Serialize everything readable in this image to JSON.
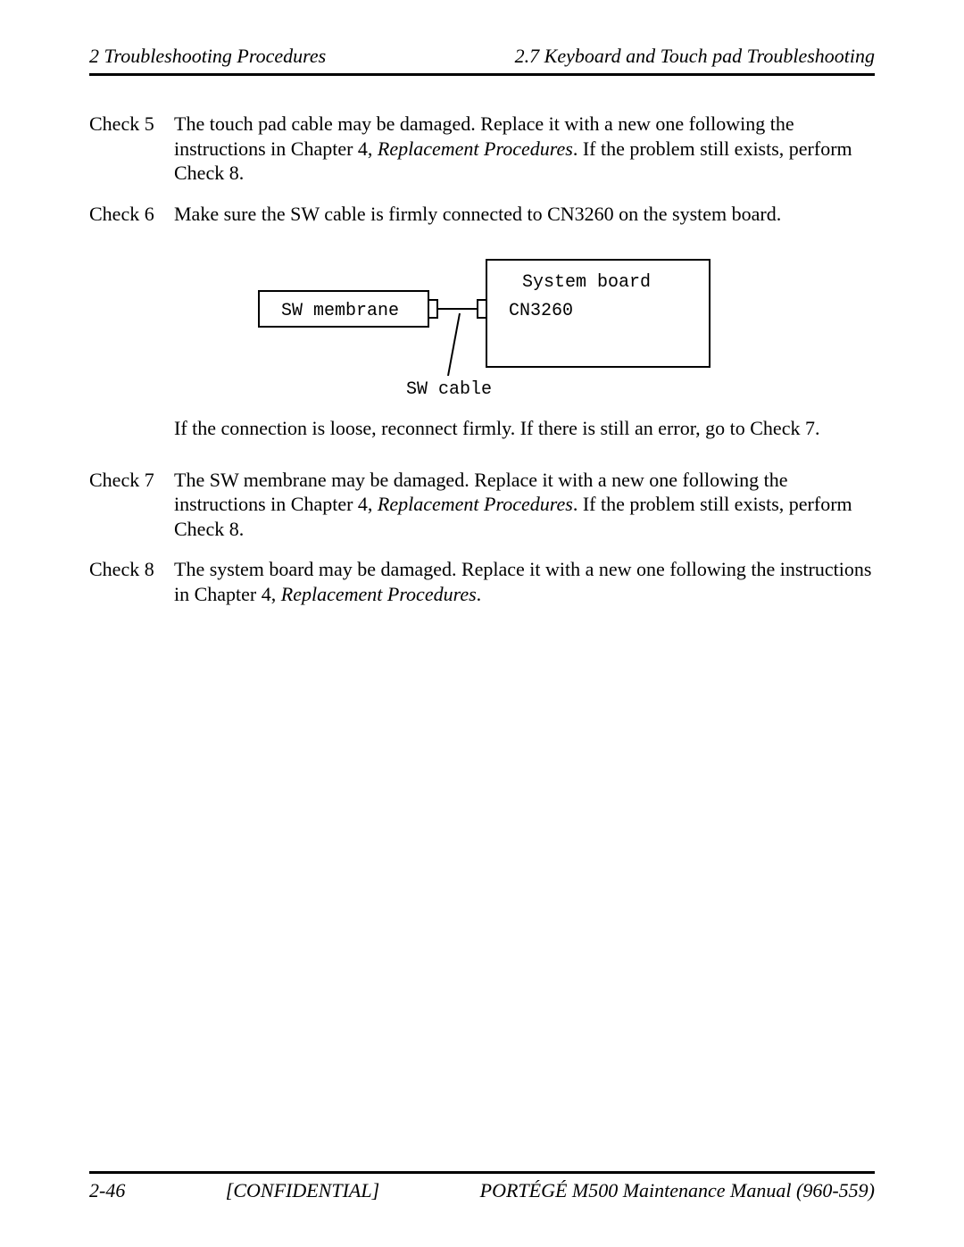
{
  "header": {
    "left": "2  Troubleshooting Procedures",
    "right": "2.7 Keyboard and Touch pad Troubleshooting"
  },
  "checks": [
    {
      "label": "Check 5",
      "body_parts": [
        {
          "text": "The touch pad cable may be damaged. Replace it with a new one following the instructions in Chapter 4, ",
          "italic": false
        },
        {
          "text": "Replacement Procedures",
          "italic": true
        },
        {
          "text": ". If the problem still exists, perform Check 8.",
          "italic": false
        }
      ]
    },
    {
      "label": "Check 6",
      "body_parts": [
        {
          "text": "Make sure the SW cable is firmly connected to CN3260 on the system board.",
          "italic": false
        }
      ]
    }
  ],
  "diagram": {
    "left_box_label": "SW membrane",
    "right_box_line1": "System board",
    "right_box_line2": "CN3260",
    "cable_label": "SW cable",
    "stroke": "#000000",
    "stroke_width": 2,
    "font_family": "Courier New"
  },
  "after_diagram": "If the connection is loose, reconnect firmly. If there is still an error, go to Check 7.",
  "checks_after": [
    {
      "label": "Check 7",
      "body_parts": [
        {
          "text": "The SW membrane may be damaged. Replace it with a new one following the instructions in Chapter 4, ",
          "italic": false
        },
        {
          "text": "Replacement Procedures",
          "italic": true
        },
        {
          "text": ". If the problem still exists, perform Check 8.",
          "italic": false
        }
      ]
    },
    {
      "label": "Check 8",
      "body_parts": [
        {
          "text": "The system board may be damaged. Replace it with a new one following the instructions in Chapter 4, ",
          "italic": false
        },
        {
          "text": "Replacement Procedures",
          "italic": true
        },
        {
          "text": ".",
          "italic": false
        }
      ]
    }
  ],
  "footer": {
    "left": "2-46",
    "center": "[CONFIDENTIAL]",
    "right": "PORTÉGÉ M500 Maintenance Manual (960-559)"
  }
}
